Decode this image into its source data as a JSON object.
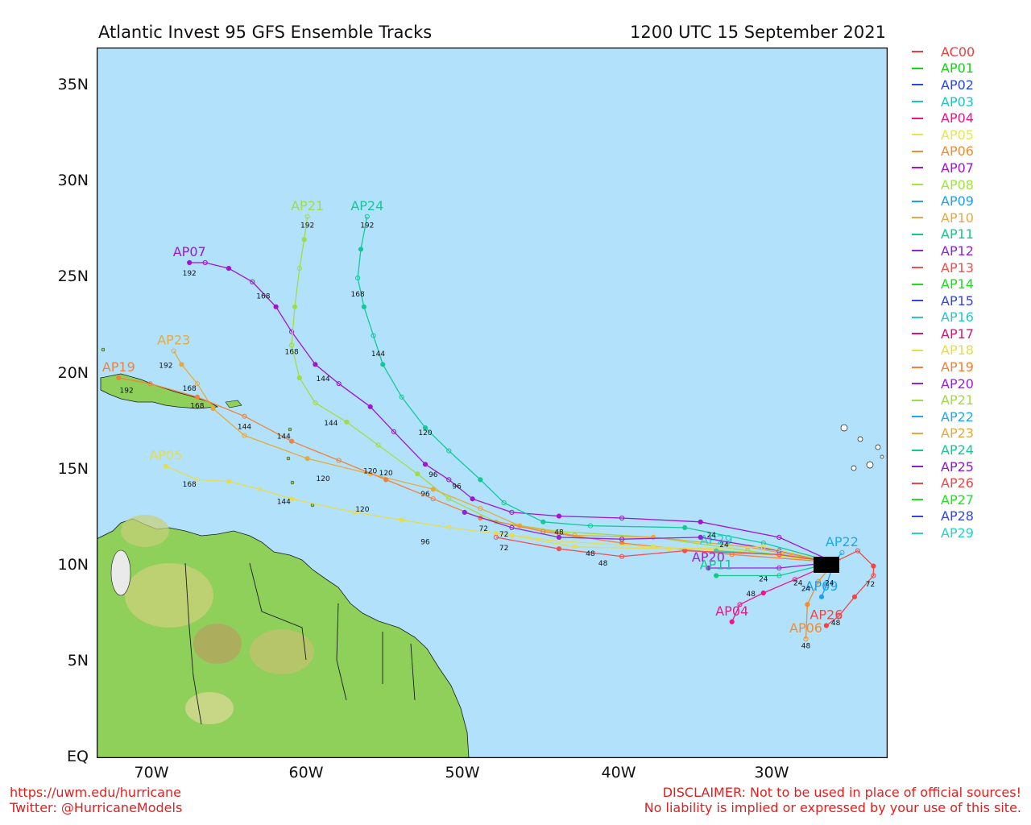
{
  "header": {
    "title": "Atlantic Invest 95 GFS Ensemble Tracks",
    "datetime": "1200 UTC 15 September 2021"
  },
  "axes": {
    "y_labels": [
      "EQ",
      "5N",
      "10N",
      "15N",
      "20N",
      "25N",
      "30N",
      "35N"
    ],
    "x_labels": [
      "70W",
      "60W",
      "50W",
      "40W",
      "30W"
    ]
  },
  "colors": {
    "ocean": "#b2e2fb",
    "land_green": "#8fd05a",
    "land_highland": "#c8b46a"
  },
  "legend": [
    {
      "name": "AC00",
      "color": "#f03c3c"
    },
    {
      "name": "AP01",
      "color": "#14d214"
    },
    {
      "name": "AP02",
      "color": "#2846f0"
    },
    {
      "name": "AP03",
      "color": "#14c8c8"
    },
    {
      "name": "AP04",
      "color": "#f0148c"
    },
    {
      "name": "AP05",
      "color": "#e6e650"
    },
    {
      "name": "AP06",
      "color": "#f08c32"
    },
    {
      "name": "AP07",
      "color": "#a014d2"
    },
    {
      "name": "AP08",
      "color": "#a0e63c"
    },
    {
      "name": "AP09",
      "color": "#1ea0f0"
    },
    {
      "name": "AP10",
      "color": "#e6aa46"
    },
    {
      "name": "AP11",
      "color": "#14c88c"
    },
    {
      "name": "AP12",
      "color": "#8c28d2"
    },
    {
      "name": "AP13",
      "color": "#f05050"
    },
    {
      "name": "AP14",
      "color": "#1edc1e"
    },
    {
      "name": "AP15",
      "color": "#3246e6"
    },
    {
      "name": "AP16",
      "color": "#28c8c8"
    },
    {
      "name": "AP17",
      "color": "#dc1478"
    },
    {
      "name": "AP18",
      "color": "#e6dc50"
    },
    {
      "name": "AP19",
      "color": "#f0823c"
    },
    {
      "name": "AP20",
      "color": "#a01edc"
    },
    {
      "name": "AP21",
      "color": "#a0dc46"
    },
    {
      "name": "AP22",
      "color": "#1eaaf0"
    },
    {
      "name": "AP23",
      "color": "#e6aa3c"
    },
    {
      "name": "AP24",
      "color": "#14c896"
    },
    {
      "name": "AP25",
      "color": "#8c1ec8"
    },
    {
      "name": "AP26",
      "color": "#f04646"
    },
    {
      "name": "AP27",
      "color": "#1ee61e"
    },
    {
      "name": "AP28",
      "color": "#3246e6"
    },
    {
      "name": "AP29",
      "color": "#28d2c8"
    }
  ],
  "tracks": [
    {
      "name": "AP07",
      "color": "#a014d2",
      "label": "AP07",
      "points": [
        [
          -26.5,
          10.2
        ],
        [
          -30,
          11.5
        ],
        [
          -35,
          12.3
        ],
        [
          -40,
          12.5
        ],
        [
          -44,
          12.6
        ],
        [
          -47,
          12.8
        ],
        [
          -49.5,
          13.5
        ],
        [
          -51,
          14.5
        ],
        [
          -52.5,
          15.3
        ],
        [
          -54.5,
          17.0
        ],
        [
          -56,
          18.3
        ],
        [
          -58,
          19.5
        ],
        [
          -59.5,
          20.5
        ],
        [
          -61,
          22.2
        ],
        [
          -62,
          23.5
        ],
        [
          -63.5,
          24.8
        ],
        [
          -65,
          25.5
        ],
        [
          -66.5,
          25.8
        ],
        [
          -67.5,
          25.8
        ]
      ],
      "ticks": [
        [
          "96",
          -52,
          14.8
        ],
        [
          "144",
          -59,
          19.8
        ],
        [
          "168",
          -62.8,
          24.1
        ],
        [
          "192",
          -67.5,
          25.3
        ]
      ]
    },
    {
      "name": "AP24",
      "color": "#14c896",
      "label": "AP24",
      "points": [
        [
          -26.5,
          10.2
        ],
        [
          -31,
          11.2
        ],
        [
          -36,
          12.0
        ],
        [
          -42,
          12.1
        ],
        [
          -45,
          12.3
        ],
        [
          -47.5,
          13.3
        ],
        [
          -49,
          14.5
        ],
        [
          -51,
          16.0
        ],
        [
          -52.5,
          17.2
        ],
        [
          -54,
          18.8
        ],
        [
          -55.2,
          20.5
        ],
        [
          -55.8,
          22.0
        ],
        [
          -56.4,
          23.5
        ],
        [
          -56.8,
          25.0
        ],
        [
          -56.6,
          26.5
        ],
        [
          -56.2,
          28.2
        ]
      ],
      "ticks": [
        [
          "96",
          -50.5,
          14.2
        ],
        [
          "120",
          -52.5,
          17.0
        ],
        [
          "144",
          -55.5,
          21.1
        ],
        [
          "168",
          -56.8,
          24.2
        ],
        [
          "192",
          -56.2,
          27.8
        ]
      ]
    },
    {
      "name": "AP21",
      "color": "#a0dc46",
      "label": "AP21",
      "points": [
        [
          -26.5,
          10.2
        ],
        [
          -32,
          10.8
        ],
        [
          -38,
          11.5
        ],
        [
          -44,
          11.8
        ],
        [
          -48,
          12.3
        ],
        [
          -51,
          13.5
        ],
        [
          -53,
          14.8
        ],
        [
          -55.5,
          16.3
        ],
        [
          -57.5,
          17.5
        ],
        [
          -59.5,
          18.5
        ],
        [
          -60.5,
          19.8
        ],
        [
          -61,
          21.5
        ],
        [
          -60.8,
          23.5
        ],
        [
          -60.5,
          25.5
        ],
        [
          -60.2,
          27.0
        ],
        [
          -60.0,
          28.2
        ]
      ],
      "ticks": [
        [
          "120",
          -55,
          14.9
        ],
        [
          "144",
          -58.5,
          17.5
        ],
        [
          "168",
          -61,
          21.2
        ],
        [
          "192",
          -60.0,
          27.8
        ]
      ]
    },
    {
      "name": "AP23",
      "color": "#e6aa3c",
      "label": "AP23",
      "points": [
        [
          -26.5,
          10.2
        ],
        [
          -32,
          11.0
        ],
        [
          -38,
          11.5
        ],
        [
          -43,
          11.6
        ],
        [
          -46.5,
          12.1
        ],
        [
          -49,
          13.0
        ],
        [
          -52,
          14.0
        ],
        [
          -56,
          14.8
        ],
        [
          -60,
          15.6
        ],
        [
          -64,
          16.8
        ],
        [
          -66,
          18.2
        ],
        [
          -67,
          19.5
        ],
        [
          -68,
          20.5
        ],
        [
          -68.5,
          21.2
        ]
      ],
      "ticks": [
        [
          "96",
          -52.5,
          13.8
        ],
        [
          "120",
          -59,
          14.6
        ],
        [
          "144",
          -64,
          17.3
        ],
        [
          "168",
          -67.5,
          19.3
        ],
        [
          "192",
          -69,
          20.5
        ]
      ]
    },
    {
      "name": "AP19",
      "color": "#f0823c",
      "label": "AP19",
      "points": [
        [
          -26.5,
          10.2
        ],
        [
          -33,
          10.6
        ],
        [
          -40,
          11.2
        ],
        [
          -45,
          11.8
        ],
        [
          -49,
          12.5
        ],
        [
          -52,
          13.5
        ],
        [
          -55,
          14.5
        ],
        [
          -58,
          15.5
        ],
        [
          -61,
          16.5
        ],
        [
          -64,
          17.8
        ],
        [
          -67,
          18.8
        ],
        [
          -70,
          19.5
        ],
        [
          -72,
          19.8
        ]
      ],
      "ticks": [
        [
          "120",
          -56,
          15.0
        ],
        [
          "144",
          -61.5,
          16.8
        ],
        [
          "168",
          -67,
          18.4
        ],
        [
          "192",
          -71.5,
          19.2
        ]
      ]
    },
    {
      "name": "AP05",
      "color": "#e6dc50",
      "label": "AP05",
      "points": [
        [
          -26.5,
          10.2
        ],
        [
          -33,
          10.8
        ],
        [
          -38,
          11.0
        ],
        [
          -44,
          11.3
        ],
        [
          -48,
          11.7
        ],
        [
          -51,
          12.0
        ],
        [
          -54,
          12.4
        ],
        [
          -57,
          12.8
        ],
        [
          -61,
          13.5
        ],
        [
          -63,
          14.0
        ],
        [
          -65,
          14.4
        ],
        [
          -67,
          14.5
        ],
        [
          -69,
          15.2
        ]
      ],
      "ticks": [
        [
          "72",
          -47.5,
          11.7
        ],
        [
          "96",
          -52.5,
          11.3
        ],
        [
          "120",
          -56.5,
          13.0
        ],
        [
          "144",
          -61.5,
          13.4
        ],
        [
          "168",
          -67.5,
          14.3
        ]
      ]
    },
    {
      "name": "AP06",
      "color": "#f08c32",
      "label": "AP06",
      "points": [
        [
          -26.5,
          10.2
        ],
        [
          -27.5,
          9.2
        ],
        [
          -28.2,
          8.0
        ],
        [
          -28.3,
          6.2
        ]
      ],
      "ticks": [
        [
          "48",
          -28.3,
          5.9
        ]
      ]
    },
    {
      "name": "AP04",
      "color": "#f0148c",
      "label": "AP04",
      "points": [
        [
          -26.5,
          10.2
        ],
        [
          -29,
          9.3
        ],
        [
          -31,
          8.6
        ],
        [
          -32.5,
          8.0
        ],
        [
          -33,
          7.1
        ]
      ],
      "ticks": [
        [
          "48",
          -31.8,
          8.6
        ]
      ]
    },
    {
      "name": "AP26",
      "color": "#f04646",
      "label": "AP26",
      "points": [
        [
          -26.5,
          10.2
        ],
        [
          -25,
          10.8
        ],
        [
          -24,
          10.0
        ],
        [
          -24.0,
          9.5
        ],
        [
          -25.2,
          8.4
        ],
        [
          -26.2,
          7.4
        ],
        [
          -27,
          6.9
        ]
      ],
      "ticks": [
        [
          "72",
          -24.2,
          9.1
        ],
        [
          "48",
          -26.4,
          7.1
        ]
      ]
    },
    {
      "name": "AP09",
      "color": "#1ea0f0",
      "label": "AP09",
      "points": [
        [
          -26.5,
          10.2
        ],
        [
          -27,
          9.0
        ],
        [
          -27.3,
          8.4
        ]
      ],
      "ticks": []
    },
    {
      "name": "AP20",
      "color": "#a01edc",
      "label": "AP20",
      "points": [
        [
          -26.5,
          10.2
        ],
        [
          -30,
          9.9
        ],
        [
          -34.5,
          9.9
        ]
      ],
      "ticks": []
    },
    {
      "name": "AP11",
      "color": "#14c88c",
      "label": "AP11",
      "points": [
        [
          -26.5,
          10.2
        ],
        [
          -30,
          9.5
        ],
        [
          -34,
          9.5
        ]
      ],
      "ticks": []
    },
    {
      "name": "AP29",
      "color": "#28d2c8",
      "label": "AP29",
      "points": [
        [
          -26.5,
          10.2
        ],
        [
          -30,
          10.6
        ],
        [
          -34,
          10.8
        ]
      ],
      "ticks": []
    },
    {
      "name": "AP22",
      "color": "#1eaaf0",
      "label": "AP22",
      "points": [
        [
          -26.5,
          10.2
        ],
        [
          -26.0,
          10.7
        ]
      ],
      "ticks": []
    },
    {
      "name": "AP12",
      "color": "#8c28d2",
      "label": "",
      "points": [
        [
          -26.5,
          10.2
        ],
        [
          -30,
          10.8
        ],
        [
          -35,
          11.5
        ],
        [
          -40,
          11.4
        ],
        [
          -44,
          11.5
        ],
        [
          -47,
          12.0
        ],
        [
          -50,
          12.8
        ]
      ],
      "ticks": [
        [
          "48",
          -44,
          11.8
        ],
        [
          "72",
          -48.8,
          12.0
        ]
      ]
    },
    {
      "name": "AP13",
      "color": "#f05050",
      "label": "",
      "points": [
        [
          -26.5,
          10.2
        ],
        [
          -30,
          10.6
        ],
        [
          -36,
          10.8
        ],
        [
          -40,
          10.5
        ],
        [
          -44,
          10.9
        ],
        [
          -48,
          11.5
        ]
      ],
      "ticks": [
        [
          "48",
          -41.2,
          10.2
        ],
        [
          "72",
          -47.5,
          11.0
        ]
      ]
    },
    {
      "name": "AP18",
      "color": "#e6dc50",
      "label": "",
      "points": [
        [
          -26.5,
          10.2
        ],
        [
          -31,
          11.0
        ],
        [
          -37,
          10.9
        ],
        [
          -43,
          11.0
        ],
        [
          -47,
          11.6
        ]
      ],
      "ticks": [
        [
          "48",
          -42,
          10.7
        ]
      ]
    }
  ],
  "labels_cluster": [
    "24",
    "24",
    "24",
    "24",
    "24",
    "24"
  ],
  "footer": {
    "left_line1": "https://uwm.edu/hurricane",
    "left_line2": "Twitter: @HurricaneModels",
    "right_line1": "DISCLAIMER: Not to be used in place of official sources!",
    "right_line2": "No liability is implied or expressed by your use of this site."
  }
}
